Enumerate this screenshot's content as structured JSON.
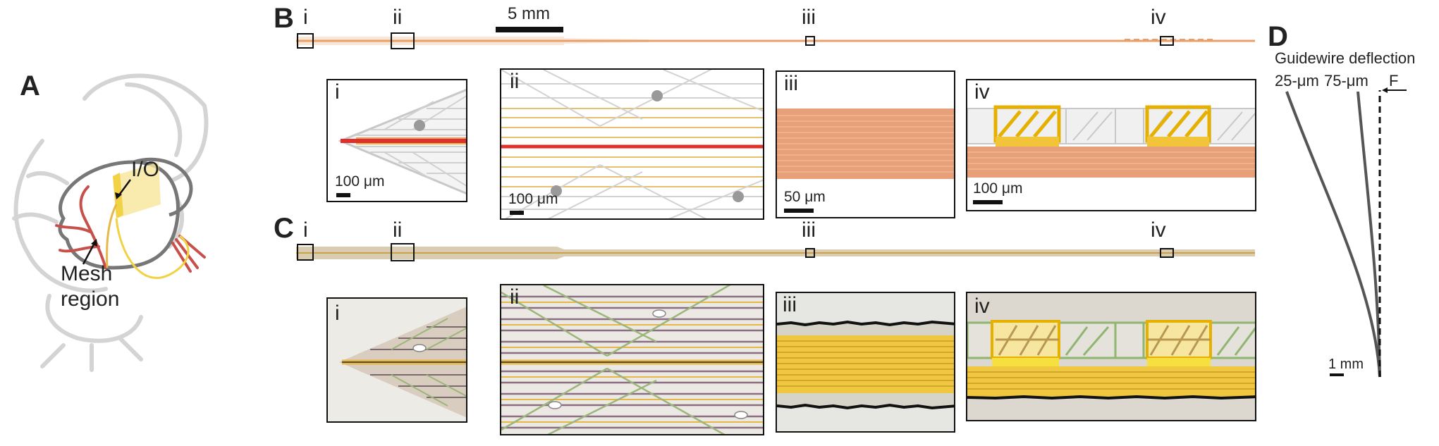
{
  "panels": {
    "A": "A",
    "B": "B",
    "C": "C",
    "D": "D"
  },
  "panel_a": {
    "io": "I/O",
    "mesh_line1": "Mesh",
    "mesh_line2": "region"
  },
  "panel_b": {
    "scale_top": "5 mm",
    "roman": [
      "i",
      "ii",
      "iii",
      "iv"
    ],
    "insets": [
      {
        "label": "i",
        "scale": "100 μm"
      },
      {
        "label": "ii",
        "scale": "100 μm"
      },
      {
        "label": "iii",
        "scale": "50 μm"
      },
      {
        "label": "iv",
        "scale": "100 μm"
      }
    ]
  },
  "panel_c": {
    "roman": [
      "i",
      "ii",
      "iii",
      "iv"
    ],
    "insets": [
      {
        "label": "i"
      },
      {
        "label": "ii"
      },
      {
        "label": "iii"
      },
      {
        "label": "iv"
      }
    ]
  },
  "panel_d": {
    "title": "Guidewire deflection",
    "l1": "25-μm",
    "l2": "75-μm",
    "force": "F",
    "scale": "1 mm"
  },
  "colors": {
    "orange": "#e8a06a",
    "red": "#e0302a",
    "gold": "#e6b84a",
    "yellow": "#f2d244",
    "grey": "#c8c8c8",
    "vessel": "#c8504a"
  }
}
